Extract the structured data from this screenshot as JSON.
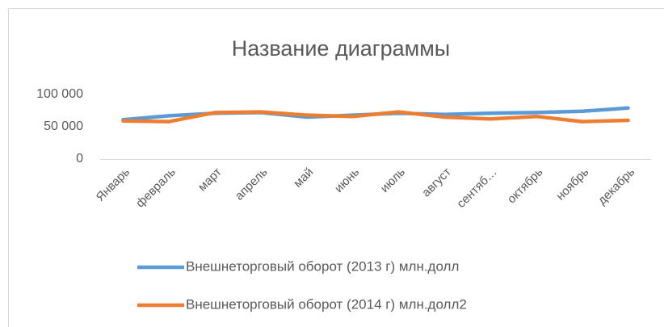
{
  "chart_data": {
    "type": "line",
    "title": "Название диаграммы",
    "categories": [
      "Январь",
      "февраль",
      "март",
      "апрель",
      "май",
      "июнь",
      "июль",
      "август",
      "сентяб…",
      "октябрь",
      "ноябрь",
      "декабрь"
    ],
    "series": [
      {
        "name": "Внешнеторговый оборот (2013 г) млн.долл",
        "color": "#5b9bd5",
        "values": [
          61000,
          67000,
          71000,
          72000,
          65000,
          68000,
          71000,
          69000,
          71000,
          72000,
          74000,
          79000
        ]
      },
      {
        "name": "Внешнеторговый оборот (2014 г) млн.долл2",
        "color": "#ed7d31",
        "values": [
          59000,
          58000,
          72000,
          73000,
          68000,
          66000,
          73000,
          65000,
          62000,
          66000,
          58000,
          60000
        ]
      }
    ],
    "ylim": [
      0,
      100000
    ],
    "yticks": [
      {
        "value": 0,
        "label": "0"
      },
      {
        "value": 50000,
        "label": "50 000"
      },
      {
        "value": 100000,
        "label": "100 000"
      }
    ],
    "legend": "bottom"
  }
}
